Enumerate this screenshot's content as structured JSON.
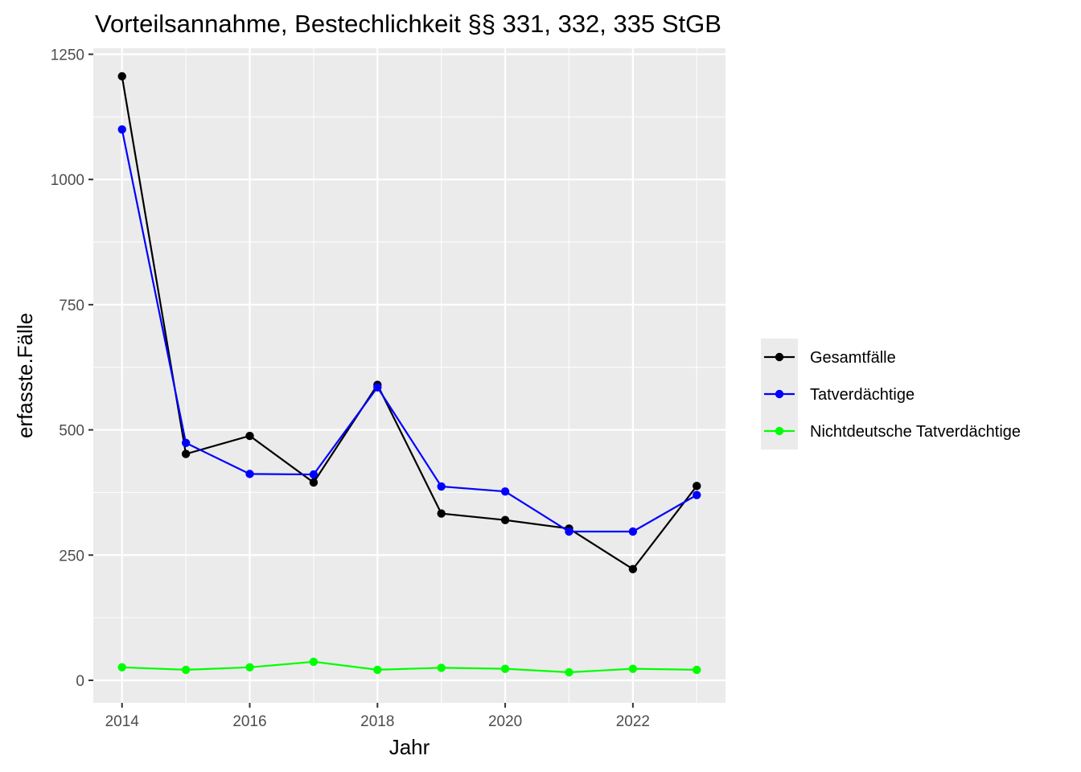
{
  "chart_data": {
    "type": "line",
    "title": "Vorteilsannahme, Bestechlichkeit §§ 331, 332, 335 StGB",
    "xlabel": "Jahr",
    "ylabel": "erfasste.Fälle",
    "x": [
      2014,
      2015,
      2016,
      2017,
      2018,
      2019,
      2020,
      2021,
      2022,
      2023
    ],
    "x_ticks": [
      "2014",
      "2016",
      "2018",
      "2020",
      "2022"
    ],
    "y_ticks": [
      "0",
      "250",
      "500",
      "750",
      "1000",
      "1250"
    ],
    "xlim": [
      2013.55,
      2023.45
    ],
    "ylim": [
      -45,
      1262
    ],
    "grid": true,
    "legend_position": "right",
    "series": [
      {
        "name": "Gesamtfälle",
        "color": "#000000",
        "values": [
          1206,
          452,
          488,
          395,
          590,
          333,
          320,
          303,
          222,
          388
        ]
      },
      {
        "name": "Tatverdächtige",
        "color": "#0000ff",
        "values": [
          1100,
          474,
          412,
          411,
          585,
          387,
          377,
          297,
          297,
          370
        ]
      },
      {
        "name": "Nichtdeutsche Tatverdächtige",
        "color": "#00ff00",
        "values": [
          26,
          21,
          26,
          37,
          21,
          25,
          23,
          16,
          23,
          21
        ]
      }
    ]
  }
}
